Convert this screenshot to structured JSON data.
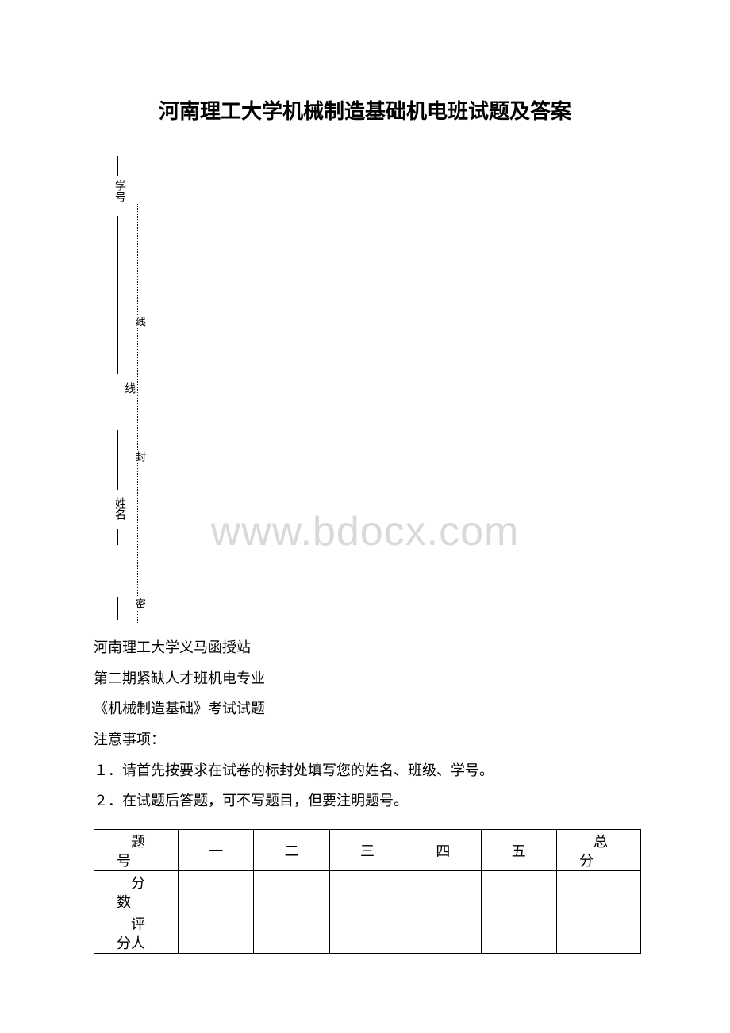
{
  "title": "河南理工大学机械制造基础机电班试题及答案",
  "binding": {
    "label_top": "学号",
    "label_mid": "线",
    "label_name": "姓名",
    "dot_xian": "线",
    "dot_feng": "封",
    "dot_mi": "密"
  },
  "watermark": "www.bdocx.com",
  "body": {
    "line1": "河南理工大学义马函授站",
    "line2": "第二期紧缺人才班机电专业",
    "line3": "《机械制造基础》考试试题",
    "line4": "注意事项：",
    "line5": "１．请首先按要求在试卷的标封处填写您的姓名、班级、学号。",
    "line6": "２．在试题后答题，可不写题目，但要注明题号。"
  },
  "table": {
    "row1_label": "题号",
    "row2_label": "分数",
    "row3_label": "评分人",
    "cols": [
      "一",
      "二",
      "三",
      "四",
      "五"
    ],
    "total_label": "总分"
  },
  "colors": {
    "background": "#ffffff",
    "text": "#000000",
    "watermark": "#d9d9d9",
    "border": "#000000"
  },
  "fonts": {
    "title_size": 26,
    "body_size": 18,
    "vertical_size": 14,
    "watermark_size": 52
  }
}
